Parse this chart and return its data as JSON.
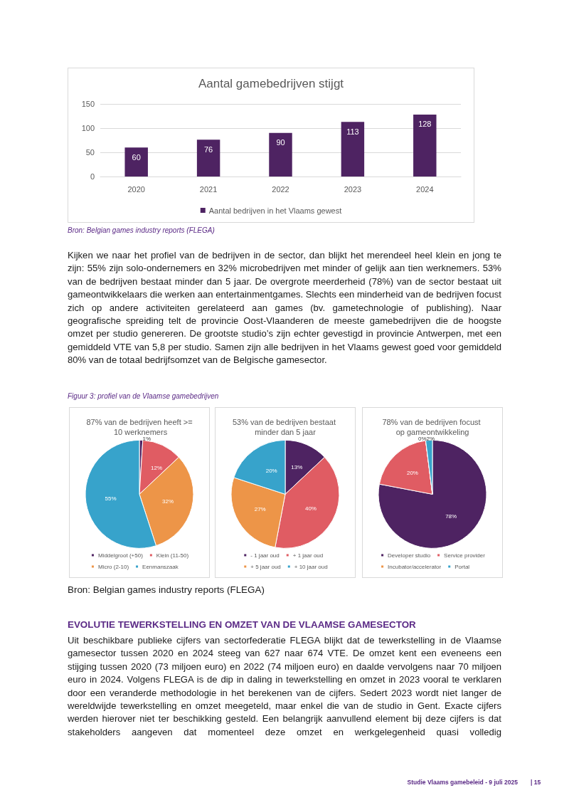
{
  "chart_data": [
    {
      "type": "bar",
      "title": "Aantal gamebedrijven stijgt",
      "categories": [
        "2020",
        "2021",
        "2022",
        "2023",
        "2024"
      ],
      "series": [
        {
          "name": "Aantal bedrijven in het Vlaams gewest",
          "color": "#4e2362",
          "values": [
            60,
            76,
            90,
            113,
            128
          ]
        }
      ],
      "ylim": [
        0,
        150
      ],
      "yticks": [
        0,
        50,
        100,
        150
      ],
      "grid": "y",
      "data_labels": true,
      "legend": "bottom",
      "annotations": [
        "Bron: Belgian games industry reports (FLEGA)",
        "Kijken we naar het profiel van de bedrijven in de sector, dan blijkt het merendeel heel klein en jong te zijn: 55% zijn solo-ondernemers en 32% microbedrijven met minder of gelijk aan tien werknemers. 53% van de bedrijven bestaat minder dan 5 jaar. De overgrote meerderheid (78%) van de sector bestaat uit gameontwikkelaars die werken aan entertainmentgames. Slechts een minderheid van de bedrijven focust zich op andere activiteiten gerelateerd aan games (bv. gametechnologie of publishing). Naar geografische spreiding telt de provincie Oost-Vlaanderen de meeste gamebedrijven die de hoogste omzet per studio genereren. De grootste studio’s zijn echter gevestigd in provincie Antwerpen, met een gemiddeld VTE van 5,8 per studio. Samen zijn alle bedrijven in het Vlaams gewest goed voor gemiddeld 80% van de totaal bedrijfsomzet van de Belgische gamesector.",
        "Figuur 3: profiel van de Vlaamse gamebedrijven"
      ]
    },
    {
      "type": "pie",
      "title": "87% van de bedrijven heeft >= 10 werknemers",
      "categories": [
        "Middelgroot (+50)",
        "Klein (11-50)",
        "Micro (2-10)",
        "Eenmanszaak"
      ],
      "values": [
        1,
        12,
        32,
        55
      ],
      "value_labels": [
        "1%",
        "12%",
        "32%",
        "55%"
      ],
      "colors": [
        "#4e2362",
        "#e05c63",
        "#ed9548",
        "#37a3cb"
      ],
      "legend": "bottom"
    },
    {
      "type": "pie",
      "title": "53% van de bedrijven bestaat minder dan 5 jaar",
      "categories": [
        "- 1 jaar oud",
        "+ 1 jaar oud",
        "+ 5 jaar oud",
        "+ 10 jaar oud"
      ],
      "values": [
        13,
        40,
        27,
        20
      ],
      "value_labels": [
        "13%",
        "40%",
        "27%",
        "20%"
      ],
      "colors": [
        "#4e2362",
        "#e05c63",
        "#ed9548",
        "#37a3cb"
      ],
      "legend": "bottom"
    },
    {
      "type": "pie",
      "title": "78% van de bedrijven focust op gameontwikkeling",
      "categories": [
        "Developer studio",
        "Service provider",
        "Incubator/accelerator",
        "Portal"
      ],
      "values": [
        78,
        20,
        0,
        2
      ],
      "value_labels": [
        "78%",
        "20%",
        "0%",
        "2%"
      ],
      "colors": [
        "#4e2362",
        "#e05c63",
        "#ed9548",
        "#37a3cb"
      ],
      "legend": "bottom",
      "annotations": [
        "Bron: Belgian games industry reports (FLEGA)",
        "EVOLUTIE TEWERKSTELLING EN OMZET VAN DE VLAAMSE GAMESECTOR",
        "Uit beschikbare publieke cijfers van sectorfederatie FLEGA blijkt dat de tewerkstelling in de Vlaamse gamesector tussen 2020 en 2024 steeg van 627 naar 674 VTE. De omzet kent een eveneens een stijging tussen 2020 (73 miljoen euro) en 2022 (74 miljoen euro) en daalde vervolgens naar 70 miljoen euro in 2024. Volgens FLEGA is de dip in daling in tewerkstelling en omzet in 2023 vooral te verklaren door een veranderde methodologie in het berekenen van de cijfers. Sedert 2023 wordt niet langer de wereldwijde tewerkstelling en omzet meegeteld, maar enkel die van de studio in Gent. Exacte cijfers werden hierover niet ter beschikking gesteld. Een belangrijk aanvullend element bij deze cijfers is dat stakeholders aangeven dat momenteel deze omzet en werkgelegenheid quasi volledig",
        "Studie Vlaams gamebeleid - 9 juli 2025",
        "| 15"
      ]
    }
  ]
}
